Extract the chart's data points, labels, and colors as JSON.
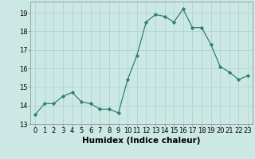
{
  "x": [
    0,
    1,
    2,
    3,
    4,
    5,
    6,
    7,
    8,
    9,
    10,
    11,
    12,
    13,
    14,
    15,
    16,
    17,
    18,
    19,
    20,
    21,
    22,
    23
  ],
  "y": [
    13.5,
    14.1,
    14.1,
    14.5,
    14.7,
    14.2,
    14.1,
    13.8,
    13.8,
    13.6,
    15.4,
    16.7,
    18.5,
    18.9,
    18.8,
    18.5,
    19.2,
    18.2,
    18.2,
    17.3,
    16.1,
    15.8,
    15.4,
    15.6
  ],
  "xlabel": "Humidex (Indice chaleur)",
  "ylim": [
    13,
    19.6
  ],
  "xlim": [
    -0.5,
    23.5
  ],
  "yticks": [
    13,
    14,
    15,
    16,
    17,
    18,
    19
  ],
  "xticks": [
    0,
    1,
    2,
    3,
    4,
    5,
    6,
    7,
    8,
    9,
    10,
    11,
    12,
    13,
    14,
    15,
    16,
    17,
    18,
    19,
    20,
    21,
    22,
    23
  ],
  "line_color": "#2e8070",
  "marker_color": "#2e8070",
  "bg_color": "#cce8e4",
  "grid_color": "#b0d4d0",
  "tick_fontsize": 6.0,
  "xlabel_fontsize": 7.5
}
